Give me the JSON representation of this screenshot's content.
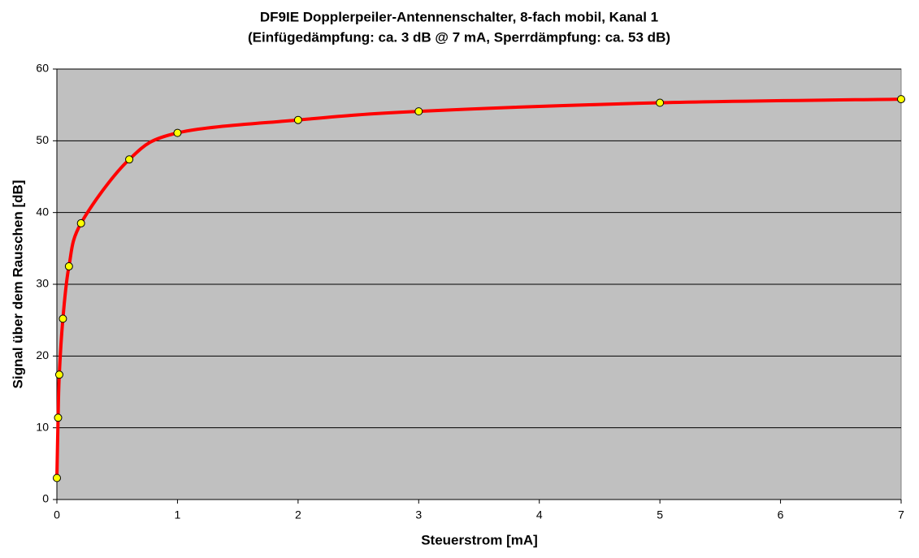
{
  "chart_data": {
    "type": "scatter-smooth",
    "title": "DF9IE Dopplerpeiler-Antennenschalter, 8-fach mobil, Kanal 1",
    "subtitle": "(Einfügedämpfung: ca. 3 dB @ 7 mA,  Sperrdämpfung: ca. 53 dB)",
    "x_label": "Steuerstrom [mA]",
    "y_label": "Signal über dem Rauschen [dB]",
    "x": [
      0,
      0.01,
      0.02,
      0.05,
      0.1,
      0.2,
      0.6,
      1,
      2,
      3,
      5,
      7
    ],
    "values": [
      3,
      11.4,
      17.4,
      25.2,
      32.5,
      38.5,
      47.4,
      51.1,
      52.9,
      54.1,
      55.3,
      55.8
    ],
    "color": "#ff0000",
    "marker_color": "#ffff00",
    "background": "#c0c0c0",
    "xlim": [
      0,
      7
    ],
    "xticks": [
      0,
      1,
      2,
      3,
      4,
      5,
      6,
      7
    ],
    "ylim": [
      0,
      60
    ],
    "yticks": [
      0,
      10,
      20,
      30,
      40,
      50,
      60
    ],
    "grid": true
  }
}
